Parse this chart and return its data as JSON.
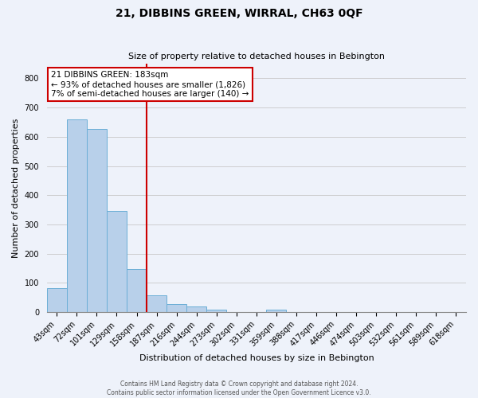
{
  "title": "21, DIBBINS GREEN, WIRRAL, CH63 0QF",
  "subtitle": "Size of property relative to detached houses in Bebington",
  "bar_labels": [
    "43sqm",
    "72sqm",
    "101sqm",
    "129sqm",
    "158sqm",
    "187sqm",
    "216sqm",
    "244sqm",
    "273sqm",
    "302sqm",
    "331sqm",
    "359sqm",
    "388sqm",
    "417sqm",
    "446sqm",
    "474sqm",
    "503sqm",
    "532sqm",
    "561sqm",
    "589sqm",
    "618sqm"
  ],
  "bar_values": [
    82,
    660,
    628,
    345,
    147,
    58,
    27,
    18,
    8,
    0,
    0,
    9,
    0,
    0,
    0,
    0,
    0,
    0,
    0,
    0,
    0
  ],
  "bar_color": "#b8d0ea",
  "bar_edgecolor": "#6aaed6",
  "vline_x_index": 5,
  "vline_color": "#cc0000",
  "xlabel": "Distribution of detached houses by size in Bebington",
  "ylabel": "Number of detached properties",
  "ylim": [
    0,
    850
  ],
  "yticks": [
    0,
    100,
    200,
    300,
    400,
    500,
    600,
    700,
    800
  ],
  "annotation_title": "21 DIBBINS GREEN: 183sqm",
  "annotation_line1": "← 93% of detached houses are smaller (1,826)",
  "annotation_line2": "7% of semi-detached houses are larger (140) →",
  "annotation_box_facecolor": "white",
  "annotation_box_edgecolor": "#cc0000",
  "footer_line1": "Contains HM Land Registry data © Crown copyright and database right 2024.",
  "footer_line2": "Contains public sector information licensed under the Open Government Licence v3.0.",
  "bg_color": "#eef2fa",
  "grid_color": "#c8c8c8",
  "title_fontsize": 10,
  "subtitle_fontsize": 8,
  "ylabel_fontsize": 8,
  "xlabel_fontsize": 8,
  "tick_fontsize": 7,
  "annot_fontsize": 7.5,
  "footer_fontsize": 5.5
}
